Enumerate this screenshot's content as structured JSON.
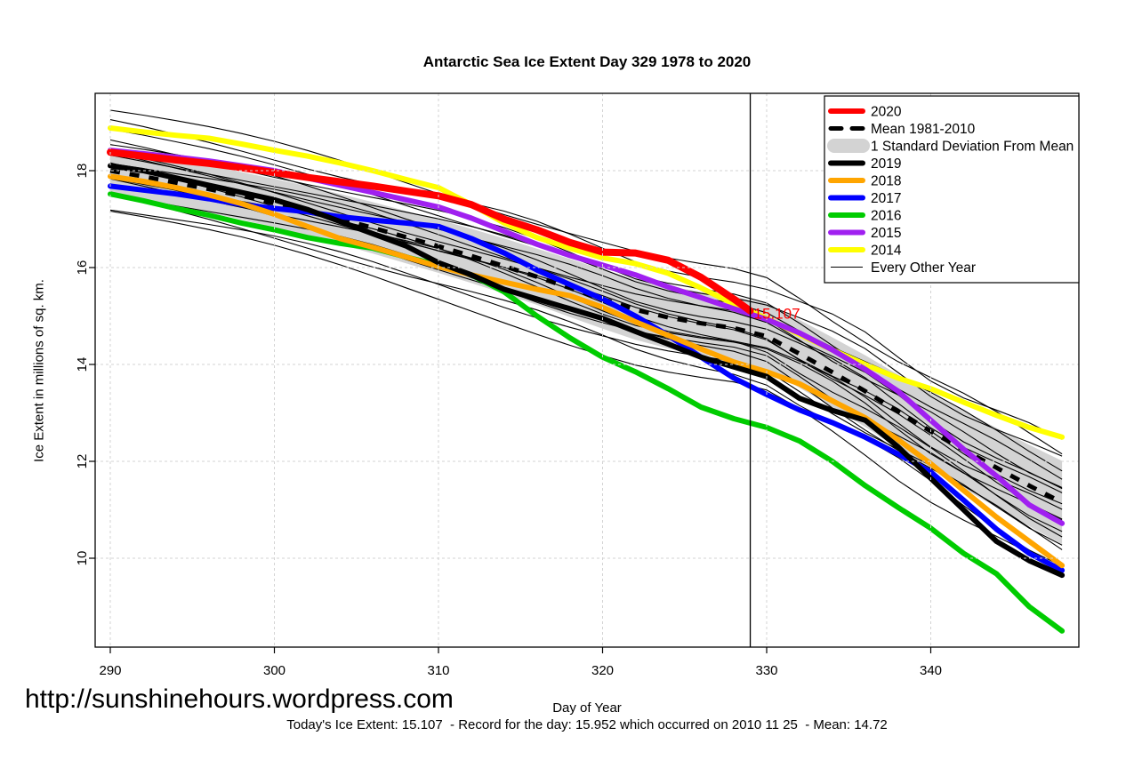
{
  "footer": {
    "url": "http://sunshinehours.wordpress.com",
    "caption": "Today's Ice Extent: 15.107  - Record for the day: 15.952 which occurred on 2010 11 25  - Mean: 14.72"
  },
  "chart_data": {
    "type": "line",
    "title": "Antarctic Sea Ice Extent Day 329 1978 to 2020",
    "xlabel": "Day of Year",
    "ylabel": "Ice Extent in millions of sq. km.",
    "x_ticks": [
      290,
      300,
      310,
      320,
      330,
      340
    ],
    "y_ticks": [
      10,
      12,
      14,
      16,
      18
    ],
    "xlim": [
      289.1,
      349.0
    ],
    "ylim": [
      8.1,
      19.6
    ],
    "grid": true,
    "legend_position": "top-right",
    "marker_day": 329,
    "annotation": {
      "text": "15.107",
      "day": 329,
      "value": 15.107,
      "color": "#FF0000"
    },
    "days": [
      290,
      292,
      294,
      296,
      298,
      300,
      302,
      304,
      306,
      308,
      310,
      312,
      314,
      316,
      318,
      320,
      322,
      324,
      326,
      328,
      330,
      332,
      334,
      336,
      338,
      340,
      342,
      344,
      346,
      348
    ],
    "mean_series": {
      "name": "Mean 1981-2010",
      "color": "#000000",
      "values": [
        18.0,
        17.88,
        17.75,
        17.62,
        17.48,
        17.33,
        17.17,
        17.0,
        16.82,
        16.63,
        16.44,
        16.24,
        16.03,
        15.81,
        15.58,
        15.35,
        15.13,
        14.97,
        14.85,
        14.75,
        14.58,
        14.22,
        13.84,
        13.45,
        13.03,
        12.62,
        12.24,
        11.87,
        11.5,
        11.15
      ]
    },
    "sd_band": {
      "name": "1 Standard Deviation From Mean",
      "color": "#D3D3D3",
      "sd": [
        0.45,
        0.46,
        0.47,
        0.48,
        0.49,
        0.5,
        0.51,
        0.52,
        0.53,
        0.54,
        0.55,
        0.56,
        0.57,
        0.58,
        0.6,
        0.61,
        0.62,
        0.64,
        0.65,
        0.66,
        0.68,
        0.7,
        0.72,
        0.74,
        0.76,
        0.78,
        0.8,
        0.82,
        0.84,
        0.86
      ]
    },
    "series": [
      {
        "name": "2014",
        "color": "#FFFF00",
        "values": [
          18.88,
          18.8,
          18.73,
          18.67,
          18.55,
          18.42,
          18.3,
          18.16,
          18.0,
          17.82,
          17.65,
          17.3,
          16.92,
          16.62,
          16.4,
          16.2,
          16.08,
          15.88,
          15.58,
          15.25,
          14.95,
          14.62,
          14.3,
          14.0,
          13.72,
          13.5,
          13.22,
          12.95,
          12.7,
          12.5
        ]
      },
      {
        "name": "2015",
        "color": "#A020F0",
        "values": [
          18.42,
          18.35,
          18.28,
          18.2,
          18.1,
          18.0,
          17.85,
          17.7,
          17.55,
          17.4,
          17.25,
          17.02,
          16.75,
          16.48,
          16.25,
          16.05,
          15.85,
          15.6,
          15.38,
          15.15,
          14.93,
          14.65,
          14.3,
          13.9,
          13.45,
          12.85,
          12.25,
          11.7,
          11.1,
          10.72
        ]
      },
      {
        "name": "2016",
        "color": "#00CC00",
        "values": [
          17.52,
          17.38,
          17.22,
          17.08,
          16.92,
          16.78,
          16.62,
          16.5,
          16.4,
          16.22,
          16.05,
          15.85,
          15.5,
          15.0,
          14.55,
          14.15,
          13.85,
          13.5,
          13.12,
          12.88,
          12.7,
          12.42,
          12.0,
          11.5,
          11.05,
          10.62,
          10.1,
          9.68,
          9.0,
          8.5
        ]
      },
      {
        "name": "2017",
        "color": "#0000FF",
        "values": [
          17.68,
          17.6,
          17.52,
          17.42,
          17.3,
          17.22,
          17.15,
          17.05,
          16.98,
          16.92,
          16.85,
          16.6,
          16.3,
          15.95,
          15.65,
          15.35,
          15.0,
          14.6,
          14.15,
          13.72,
          13.38,
          13.06,
          12.8,
          12.5,
          12.15,
          11.78,
          11.2,
          10.6,
          10.1,
          9.75
        ]
      },
      {
        "name": "2018",
        "color": "#FFA500",
        "values": [
          17.88,
          17.78,
          17.65,
          17.5,
          17.32,
          17.1,
          16.85,
          16.6,
          16.42,
          16.22,
          16.02,
          15.85,
          15.7,
          15.55,
          15.42,
          15.18,
          14.88,
          14.6,
          14.32,
          14.05,
          13.85,
          13.6,
          13.25,
          12.9,
          12.45,
          11.95,
          11.4,
          10.85,
          10.35,
          9.85
        ]
      },
      {
        "name": "2019",
        "color": "#000000",
        "values": [
          18.1,
          18.0,
          17.85,
          17.7,
          17.55,
          17.4,
          17.2,
          16.95,
          16.7,
          16.45,
          16.1,
          15.85,
          15.55,
          15.35,
          15.15,
          14.95,
          14.68,
          14.42,
          14.15,
          13.95,
          13.75,
          13.3,
          13.05,
          12.85,
          12.3,
          11.65,
          11.0,
          10.35,
          9.95,
          9.65
        ]
      },
      {
        "name": "2020",
        "color": "#FF0000",
        "days": [
          290,
          292,
          294,
          296,
          298,
          300,
          302,
          304,
          306,
          308,
          310,
          312,
          314,
          316,
          318,
          320,
          322,
          324,
          326,
          328,
          329
        ],
        "values": [
          18.38,
          18.3,
          18.22,
          18.15,
          18.06,
          17.96,
          17.86,
          17.77,
          17.68,
          17.58,
          17.48,
          17.3,
          17.0,
          16.78,
          16.52,
          16.32,
          16.3,
          16.15,
          15.8,
          15.35,
          15.107
        ]
      }
    ],
    "every_other_year": {
      "name": "Every Other Year",
      "color": "#000000",
      "lines": [
        [
          19.2,
          12.2,
          0.1,
          5.0,
          0.5
        ],
        [
          18.95,
          12.35,
          0.12,
          6.0,
          2.1
        ],
        [
          18.78,
          11.6,
          0.08,
          4.5,
          1.2
        ],
        [
          18.62,
          12.0,
          0.11,
          5.5,
          3.0
        ],
        [
          18.52,
          11.35,
          0.09,
          6.5,
          0.2
        ],
        [
          18.42,
          11.9,
          0.13,
          4.0,
          4.0
        ],
        [
          18.35,
          11.25,
          0.1,
          5.6,
          2.9
        ],
        [
          18.3,
          10.85,
          0.1,
          5.2,
          1.8
        ],
        [
          18.22,
          11.5,
          0.08,
          6.2,
          5.1
        ],
        [
          18.1,
          10.55,
          0.12,
          4.8,
          2.6
        ],
        [
          18.0,
          11.1,
          0.09,
          5.8,
          0.9
        ],
        [
          17.95,
          10.7,
          0.11,
          4.9,
          4.8
        ],
        [
          17.88,
          10.9,
          0.11,
          5.4,
          3.6
        ],
        [
          17.78,
          10.2,
          0.1,
          4.6,
          1.5
        ],
        [
          17.6,
          10.6,
          0.08,
          6.4,
          4.4
        ],
        [
          17.42,
          9.9,
          0.12,
          5.1,
          2.3
        ],
        [
          17.25,
          10.35,
          0.09,
          5.9,
          5.5
        ],
        [
          17.1,
          9.65,
          0.1,
          4.3,
          0.7
        ]
      ]
    },
    "legend": [
      {
        "label": "2020",
        "color": "#FF0000",
        "key": "thick"
      },
      {
        "label": "Mean 1981-2010",
        "color": "#000000",
        "key": "dashed"
      },
      {
        "label": "1 Standard Deviation From Mean",
        "color": "#D3D3D3",
        "key": "band"
      },
      {
        "label": "2019",
        "color": "#000000",
        "key": "thick"
      },
      {
        "label": "2018",
        "color": "#FFA500",
        "key": "thick"
      },
      {
        "label": "2017",
        "color": "#0000FF",
        "key": "thick"
      },
      {
        "label": "2016",
        "color": "#00CC00",
        "key": "thick"
      },
      {
        "label": "2015",
        "color": "#A020F0",
        "key": "thick"
      },
      {
        "label": "2014",
        "color": "#FFFF00",
        "key": "thick"
      },
      {
        "label": "Every Other Year",
        "color": "#000000",
        "key": "thin"
      }
    ]
  }
}
